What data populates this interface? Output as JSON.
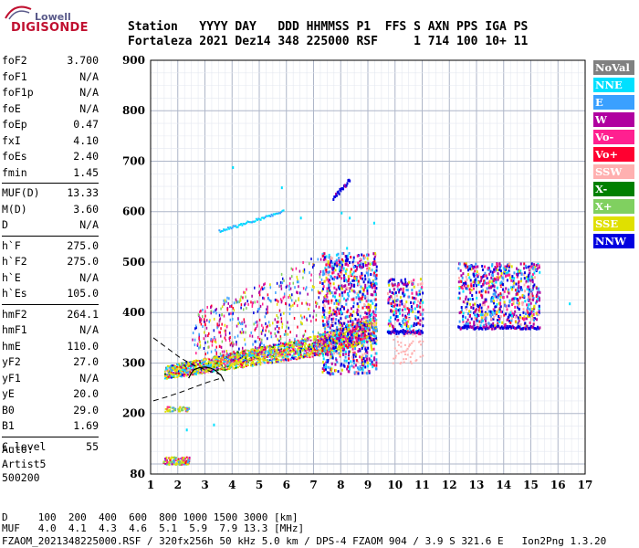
{
  "logo": {
    "line1": "Lowell",
    "line2": "DIGISONDE"
  },
  "header": {
    "labels": "Station   YYYY DAY   DDD HHMMSS P1  FFS S AXN PPS IGA PS",
    "values": "Fortaleza 2021 Dez14 348 225000 RSF     1 714 100 10+ 11"
  },
  "params": [
    {
      "name": "foF2",
      "value": "3.700"
    },
    {
      "name": "foF1",
      "value": "N/A"
    },
    {
      "name": "foF1p",
      "value": "N/A"
    },
    {
      "name": "foE",
      "value": "N/A"
    },
    {
      "name": "foEp",
      "value": "0.47"
    },
    {
      "name": "fxI",
      "value": "4.10"
    },
    {
      "name": "foEs",
      "value": "2.40"
    },
    {
      "name": "fmin",
      "value": "1.45"
    },
    {
      "name": "MUF(D)",
      "value": "13.33"
    },
    {
      "name": "M(D)",
      "value": "3.60"
    },
    {
      "name": "D",
      "value": "N/A"
    },
    {
      "name": "h`F",
      "value": "275.0"
    },
    {
      "name": "h`F2",
      "value": "275.0"
    },
    {
      "name": "h`E",
      "value": "N/A"
    },
    {
      "name": "h`Es",
      "value": "105.0"
    },
    {
      "name": "hmF2",
      "value": "264.1"
    },
    {
      "name": "hmF1",
      "value": "N/A"
    },
    {
      "name": "hmE",
      "value": "110.0"
    },
    {
      "name": "yF2",
      "value": "27.0"
    },
    {
      "name": "yF1",
      "value": "N/A"
    },
    {
      "name": "yE",
      "value": "20.0"
    },
    {
      "name": "B0",
      "value": "29.0"
    },
    {
      "name": "B1",
      "value": "1.69"
    },
    {
      "name": "C-level",
      "value": "55"
    }
  ],
  "autoscale": {
    "line1": "Auto:",
    "line2": "Artist5",
    "line3": "500200"
  },
  "legend": [
    {
      "label": "NoVal",
      "color": "#808080"
    },
    {
      "label": "NNE",
      "color": "#00e0ff"
    },
    {
      "label": "E",
      "color": "#3aa0ff"
    },
    {
      "label": "W",
      "color": "#b000a0"
    },
    {
      "label": "Vo-",
      "color": "#ff2090"
    },
    {
      "label": "Vo+",
      "color": "#ff0030"
    },
    {
      "label": "SSW",
      "color": "#ffb0b0"
    },
    {
      "label": "X-",
      "color": "#008000"
    },
    {
      "label": "X+",
      "color": "#80d060"
    },
    {
      "label": "SSE",
      "color": "#e0e000"
    },
    {
      "label": "NNW",
      "color": "#0000e0"
    }
  ],
  "footer": {
    "d_row": "D     100  200  400  600  800 1000 1500 3000 [km]",
    "muf_row": "MUF   4.0  4.1  4.3  4.6  5.1  5.9  7.9 13.3 [MHz]",
    "file_row": "FZAOM_2021348225000.RSF / 320fx256h 50 kHz 5.0 km / DPS-4 FZAOM 904 / 3.9 S 321.6 E   Ion2Png 1.3.20"
  },
  "chart_data": {
    "type": "scatter",
    "title": "",
    "xlabel": "",
    "ylabel": "",
    "xlim": [
      1,
      17
    ],
    "ylim": [
      80,
      900
    ],
    "x_ticks": [
      1,
      2,
      3,
      4,
      5,
      6,
      7,
      8,
      9,
      10,
      11,
      12,
      13,
      14,
      15,
      16,
      17
    ],
    "y_ticks": [
      80,
      200,
      300,
      400,
      500,
      600,
      700,
      800,
      900
    ],
    "grid": true,
    "legend_position": "right",
    "es_layer": {
      "x_range": [
        1.45,
        2.4
      ],
      "y_range": [
        100,
        115
      ]
    },
    "es2_layer": {
      "x_range": [
        1.5,
        2.4
      ],
      "y_range": [
        205,
        215
      ]
    },
    "f_trace": {
      "x_range": [
        1.5,
        9.3
      ],
      "y_range": [
        275,
        420
      ]
    },
    "spread_f": [
      {
        "x_range": [
          7.3,
          9.3
        ],
        "y_range": [
          280,
          520
        ]
      },
      {
        "x_range": [
          9.7,
          11.0
        ],
        "y_range": [
          360,
          470
        ]
      },
      {
        "x_range": [
          12.3,
          15.3
        ],
        "y_range": [
          370,
          500
        ]
      }
    ],
    "oblique_echo_1": {
      "x_range": [
        3.5,
        5.9
      ],
      "y_range": [
        560,
        600
      ]
    },
    "oblique_echo_2": {
      "x_range": [
        7.7,
        8.3
      ],
      "y_range": [
        625,
        660
      ]
    },
    "profile_curve_x": [
      3.7,
      3.6,
      3.4,
      3.2,
      3.0,
      2.8,
      2.6,
      2.5,
      2.4
    ],
    "profile_curve_y": [
      264,
      275,
      285,
      290,
      292,
      291,
      287,
      280,
      270
    ],
    "dashed_upper_x": [
      1.1,
      1.6,
      2.1,
      2.6,
      3.1,
      3.6
    ],
    "dashed_upper_y": [
      350,
      330,
      310,
      295,
      285,
      277
    ],
    "dashed_lower_x": [
      1.1,
      1.6,
      2.1,
      2.6,
      3.1,
      3.6
    ],
    "dashed_lower_y": [
      225,
      233,
      242,
      252,
      262,
      270
    ]
  }
}
